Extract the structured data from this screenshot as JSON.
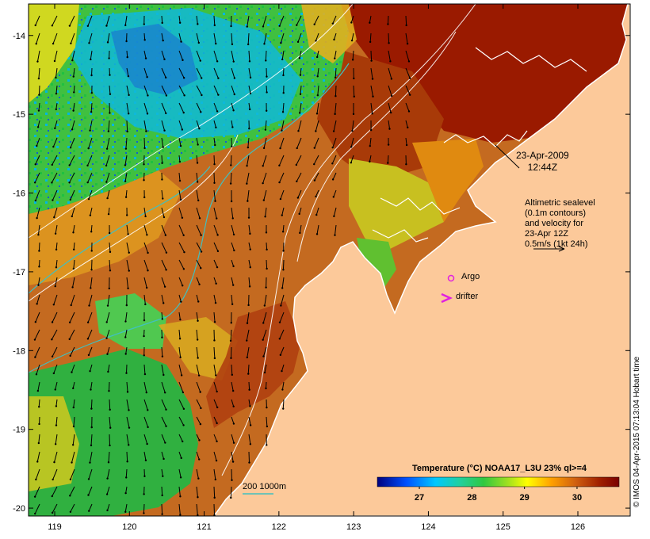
{
  "map": {
    "lon_ticks": [
      "119",
      "120",
      "121",
      "122",
      "123",
      "124",
      "125",
      "126"
    ],
    "lat_ticks": [
      "-14",
      "-15",
      "-16",
      "-17",
      "-18",
      "-19",
      "-20"
    ],
    "lon_range": [
      118.65,
      126.7
    ],
    "lat_range": [
      -20.1,
      -13.6
    ],
    "land_color": "#fcc99a",
    "coast_color": "#ffffff"
  },
  "annotations": {
    "date_line1": "23-Apr-2009",
    "date_line2": "12:44Z",
    "altimetry": [
      "Altimetric sealevel",
      "(0.1m contours)",
      "and velocity for",
      "23-Apr 12Z",
      "0.5m/s (1kt 24h)"
    ],
    "argo_label": "Argo",
    "drifter_label": "drifter",
    "argo_color": "#e020e0",
    "drifter_color": "#e020e0"
  },
  "bathymetry_legend": {
    "label": "200  1000m",
    "color": "#40c0c0"
  },
  "colorbar": {
    "title": "Temperature (°C) NOAA17_L3U 23% ql>=4",
    "tick_labels": [
      "27",
      "28",
      "29",
      "30"
    ],
    "tick_values": [
      27,
      28,
      29,
      30
    ],
    "range": [
      26.2,
      30.8
    ]
  },
  "copyright": "© IMOS 04-Apr-2015 07:13:04 Hobart time"
}
